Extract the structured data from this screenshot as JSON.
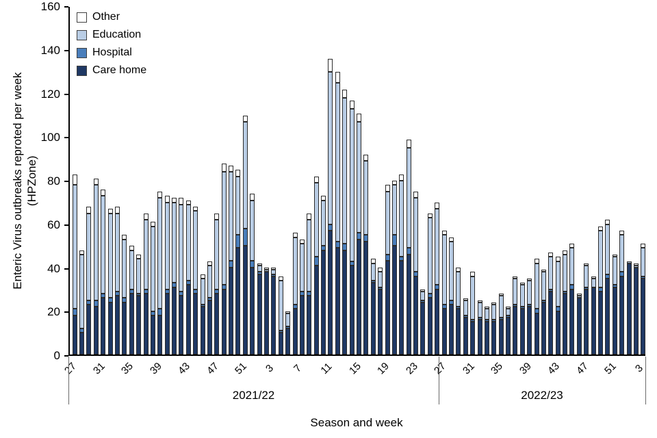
{
  "figure": {
    "y_axis_label_line1": "Enteric Virus outbreaks reproted per week",
    "y_axis_label_line2": "(HPZone)",
    "x_axis_label": "Season and week",
    "season_labels": [
      "2021/22",
      "2022/23"
    ]
  },
  "legend": [
    {
      "label": "Other",
      "color": "#ffffff"
    },
    {
      "label": "Education",
      "color": "#b9cde5"
    },
    {
      "label": "Hospital",
      "color": "#4a7ebb"
    },
    {
      "label": "Care home",
      "color": "#1f3864"
    }
  ],
  "chart_data": {
    "type": "bar",
    "stacked": true,
    "title": "",
    "xlabel": "Season and week",
    "ylabel": "Enteric Virus outbreaks reproted per week (HPZone)",
    "ylim": [
      0,
      160
    ],
    "y_ticks": [
      0,
      20,
      40,
      60,
      80,
      100,
      120,
      140,
      160
    ],
    "grid": false,
    "legend_position": "top-left",
    "x_tick_labels": [
      "27",
      "31",
      "35",
      "39",
      "43",
      "47",
      "51",
      "3",
      "7",
      "11",
      "15",
      "19",
      "23",
      "27",
      "31",
      "35",
      "39",
      "43",
      "47",
      "51",
      "3"
    ],
    "seasons": [
      {
        "name": "2021/22",
        "weeks": 52
      },
      {
        "name": "2022/23",
        "weeks": 29
      }
    ],
    "weeks": [
      "27",
      "28",
      "29",
      "30",
      "31",
      "32",
      "33",
      "34",
      "35",
      "36",
      "37",
      "38",
      "39",
      "40",
      "41",
      "42",
      "43",
      "44",
      "45",
      "46",
      "47",
      "48",
      "49",
      "50",
      "51",
      "52",
      "1",
      "2",
      "3",
      "4",
      "5",
      "6",
      "7",
      "8",
      "9",
      "10",
      "11",
      "12",
      "13",
      "14",
      "15",
      "16",
      "17",
      "18",
      "19",
      "20",
      "21",
      "22",
      "23",
      "24",
      "25",
      "26",
      "27",
      "28",
      "29",
      "30",
      "31",
      "32",
      "33",
      "34",
      "35",
      "36",
      "37",
      "38",
      "39",
      "40",
      "41",
      "42",
      "43",
      "44",
      "45",
      "46",
      "47",
      "48",
      "49",
      "50",
      "51",
      "52",
      "1",
      "2",
      "3"
    ],
    "series": [
      {
        "name": "Care home",
        "color": "#1f3864",
        "values": [
          18,
          10,
          23,
          22,
          26,
          24,
          27,
          24,
          28,
          27,
          28,
          18,
          18,
          28,
          31,
          27,
          32,
          28,
          22,
          25,
          28,
          30,
          40,
          49,
          50,
          40,
          37,
          38,
          36,
          10,
          12,
          21,
          27,
          27,
          41,
          48,
          57,
          49,
          48,
          41,
          53,
          52,
          33,
          30,
          43,
          50,
          43,
          46,
          36,
          24,
          26,
          30,
          21,
          23,
          21,
          17,
          15,
          16,
          15,
          15,
          16,
          17,
          22,
          21,
          22,
          19,
          24,
          29,
          20,
          28,
          30,
          26,
          30,
          31,
          29,
          35,
          31,
          36,
          42,
          40,
          35
        ]
      },
      {
        "name": "Hospital",
        "color": "#4a7ebb",
        "values": [
          3,
          2,
          2,
          3,
          2,
          2,
          2,
          2,
          2,
          1,
          2,
          2,
          3,
          2,
          2,
          2,
          2,
          2,
          1,
          1,
          2,
          2,
          3,
          6,
          8,
          3,
          1,
          0,
          1,
          1,
          1,
          2,
          2,
          2,
          4,
          2,
          3,
          3,
          3,
          2,
          3,
          3,
          1,
          1,
          3,
          5,
          2,
          3,
          2,
          1,
          2,
          2,
          2,
          2,
          1,
          1,
          1,
          1,
          1,
          1,
          1,
          1,
          1,
          1,
          1,
          2,
          1,
          1,
          2,
          1,
          2,
          0,
          1,
          0,
          2,
          2,
          1,
          2,
          0,
          0,
          1
        ]
      },
      {
        "name": "Education",
        "color": "#b9cde5",
        "values": [
          57,
          34,
          40,
          53,
          45,
          39,
          36,
          27,
          18,
          16,
          32,
          39,
          51,
          40,
          37,
          40,
          35,
          36,
          12,
          15,
          32,
          52,
          41,
          27,
          49,
          28,
          3,
          1,
          2,
          23,
          6,
          31,
          22,
          33,
          34,
          21,
          70,
          73,
          67,
          70,
          51,
          34,
          8,
          7,
          29,
          23,
          35,
          46,
          34,
          4,
          35,
          35,
          32,
          27,
          16,
          7,
          20,
          7,
          5,
          7,
          10,
          3,
          12,
          10,
          11,
          21,
          13,
          15,
          21,
          17,
          17,
          1,
          10,
          4,
          26,
          23,
          13,
          17,
          1,
          1,
          13
        ]
      },
      {
        "name": "Other",
        "color": "#ffffff",
        "values": [
          5,
          2,
          3,
          3,
          3,
          2,
          3,
          2,
          2,
          2,
          3,
          2,
          3,
          3,
          2,
          3,
          2,
          2,
          2,
          2,
          3,
          4,
          3,
          3,
          3,
          3,
          1,
          1,
          1,
          2,
          1,
          2,
          2,
          3,
          3,
          2,
          6,
          5,
          4,
          4,
          4,
          3,
          2,
          2,
          3,
          2,
          3,
          4,
          3,
          1,
          2,
          3,
          2,
          2,
          2,
          1,
          2,
          1,
          1,
          1,
          1,
          1,
          1,
          1,
          1,
          2,
          1,
          2,
          2,
          2,
          2,
          1,
          1,
          1,
          2,
          2,
          1,
          2,
          0,
          1,
          2
        ]
      }
    ]
  }
}
